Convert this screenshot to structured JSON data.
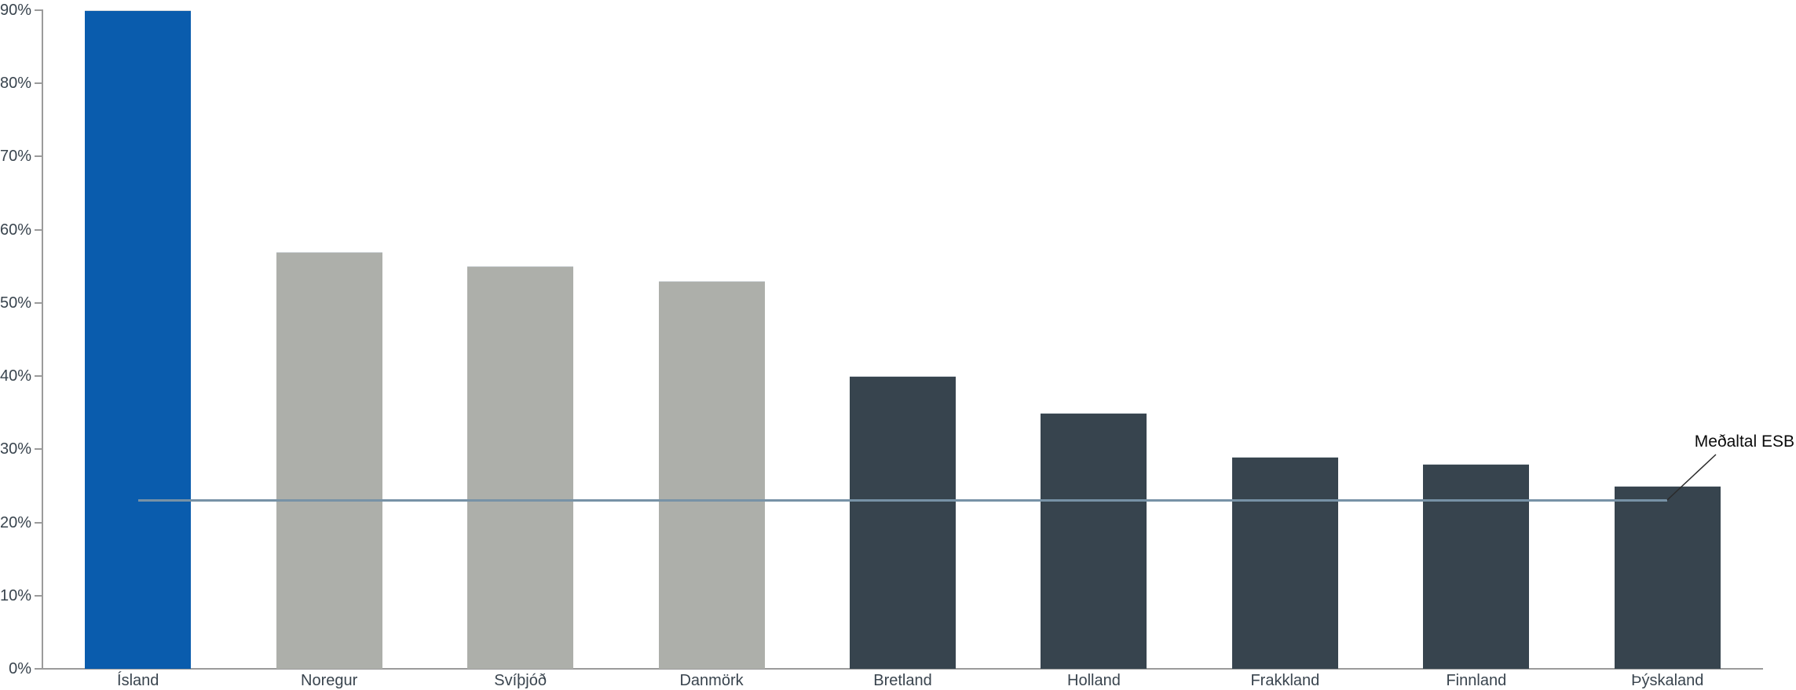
{
  "chart_data": {
    "type": "bar",
    "categories": [
      "Ísland",
      "Noregur",
      "Svíþjóð",
      "Danmörk",
      "Bretland",
      "Holland",
      "Frakkland",
      "Finnland",
      "Þýskaland"
    ],
    "values": [
      90,
      57,
      55,
      53,
      40,
      35,
      29,
      28,
      25
    ],
    "unit": "%",
    "bar_colors": [
      "#0A5CAD",
      "#ADAFAA",
      "#ADAFAA",
      "#ADAFAA",
      "#37444E",
      "#37444E",
      "#37444E",
      "#37444E",
      "#37444E"
    ],
    "reference_line": {
      "name": "Meðaltal ESB",
      "value": 23,
      "color": "#7792A6"
    },
    "y_axis": {
      "min": 0,
      "max": 90,
      "step": 10,
      "tick_labels": [
        "0%",
        "10%",
        "20%",
        "30%",
        "40%",
        "50%",
        "60%",
        "70%",
        "80%",
        "90%"
      ]
    },
    "grid": false,
    "legend": false,
    "colors": {
      "axis": "#9B9B9B",
      "tick_text": "#39444E",
      "annotation_text": "#0a0a0a"
    }
  }
}
